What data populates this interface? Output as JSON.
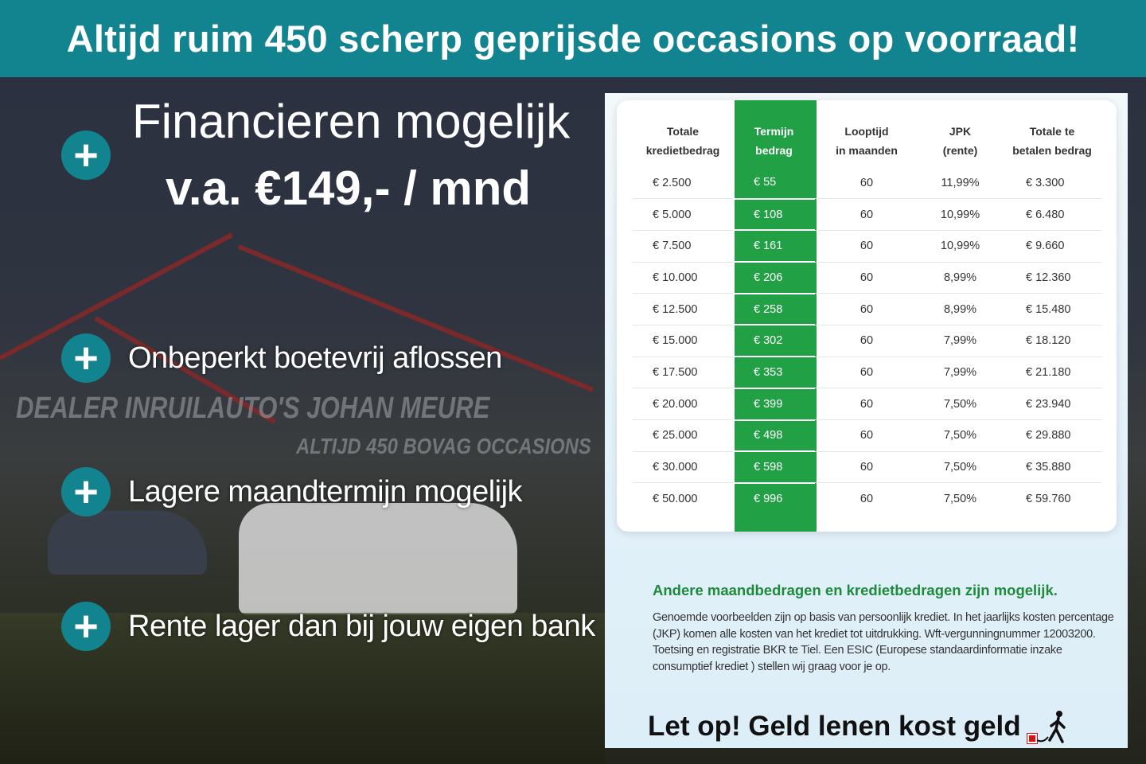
{
  "banner": {
    "title": "Altijd ruim 450 scherp geprijsde occasions op voorraad!"
  },
  "background": {
    "sign_text_1": "DEALER INRUILAUTO'S JOHAN MEURE",
    "sign_text_2": "ALTIJD 450 BOVAG OCCASIONS"
  },
  "hero": {
    "line1": "Financieren mogelijk",
    "line2": "v.a. €149,- / mnd"
  },
  "features": [
    {
      "icon": "plus-icon",
      "label": "Onbeperkt boetevrij aflossen"
    },
    {
      "icon": "plus-icon",
      "label": "Lagere maandtermijn mogelijk"
    },
    {
      "icon": "plus-icon",
      "label": "Rente lager dan bij jouw eigen bank"
    }
  ],
  "colors": {
    "teal": "#12848f",
    "green": "#22a046"
  },
  "table": {
    "headers": [
      [
        "Totale",
        "kredietbedrag"
      ],
      [
        "Termijn",
        "bedrag"
      ],
      [
        "Looptijd",
        "in maanden"
      ],
      [
        "JPK",
        "(rente)"
      ],
      [
        "Totale te",
        "betalen bedrag"
      ]
    ],
    "rows": [
      [
        "€ 2.500",
        "€ 55",
        "60",
        "11,99%",
        "€ 3.300"
      ],
      [
        "€ 5.000",
        "€ 108",
        "60",
        "10,99%",
        "€ 6.480"
      ],
      [
        "€ 7.500",
        "€ 161",
        "60",
        "10,99%",
        "€ 9.660"
      ],
      [
        "€ 10.000",
        "€ 206",
        "60",
        "8,99%",
        "€ 12.360"
      ],
      [
        "€ 12.500",
        "€ 258",
        "60",
        "8,99%",
        "€ 15.480"
      ],
      [
        "€ 15.000",
        "€ 302",
        "60",
        "7,99%",
        "€ 18.120"
      ],
      [
        "€ 17.500",
        "€ 353",
        "60",
        "7,99%",
        "€ 21.180"
      ],
      [
        "€ 20.000",
        "€ 399",
        "60",
        "7,50%",
        "€ 23.940"
      ],
      [
        "€ 25.000",
        "€ 498",
        "60",
        "7,50%",
        "€ 29.880"
      ],
      [
        "€ 30.000",
        "€ 598",
        "60",
        "7,50%",
        "€ 35.880"
      ],
      [
        "€ 50.000",
        "€ 996",
        "60",
        "7,50%",
        "€ 59.760"
      ]
    ]
  },
  "notes": {
    "heading": "Andere maandbedragen en kredietbedragen zijn mogelijk.",
    "body": "Genoemde voorbeelden zijn op basis van persoonlijk krediet. In het jaarlijks kosten percentage (JKP) komen alle kosten van het krediet tot uitdrukking. Wft-vergunningnummer 12003200. Toetsing en registratie BKR te Tiel. Een ESIC (Europese standaardinformatie inzake consumptief krediet ) stellen wij graag voor je op.",
    "warning": "Let op! Geld lenen kost geld",
    "warning_icon": "person-running-with-ball-and-chain-icon"
  }
}
